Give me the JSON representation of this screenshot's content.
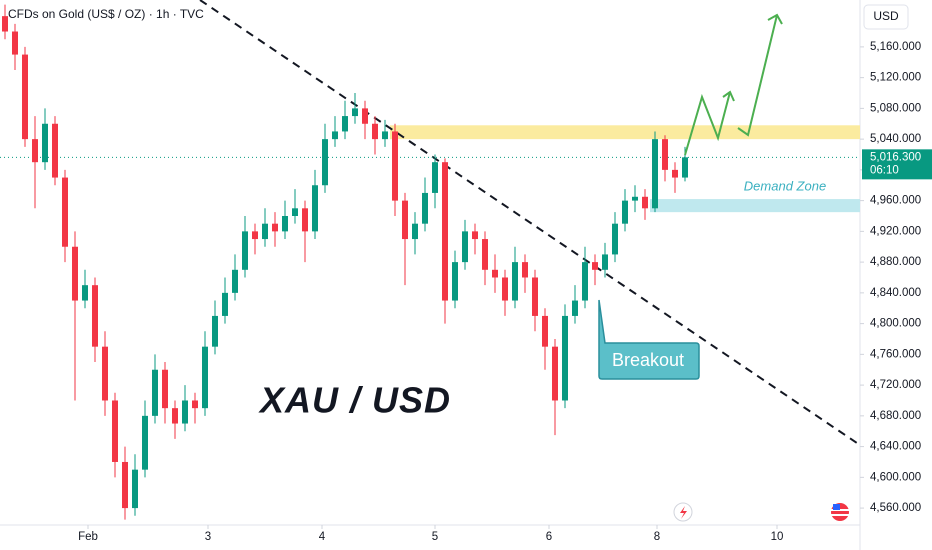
{
  "chart_data": {
    "type": "candlestick",
    "title": "CFDs on Gold (US$ / OZ) · 1h · TVC",
    "currency": "USD",
    "watermark": "XAU / USD",
    "up_color": "#089981",
    "down_color": "#f23645",
    "xlim": [
      -0.5,
      85.5
    ],
    "ylim": [
      4538,
      5221
    ],
    "xticks": [
      {
        "value": 8.3,
        "label": "Feb"
      },
      {
        "value": 20.3,
        "label": "3"
      },
      {
        "value": 31.7,
        "label": "4"
      },
      {
        "value": 43,
        "label": "5"
      },
      {
        "value": 54.4,
        "label": "6"
      },
      {
        "value": 65.2,
        "label": "8"
      },
      {
        "value": 77.2,
        "label": "10"
      }
    ],
    "yticks": [
      {
        "value": 4560,
        "label": "4,560.000"
      },
      {
        "value": 4600,
        "label": "4,600.000"
      },
      {
        "value": 4640,
        "label": "4,640.000"
      },
      {
        "value": 4680,
        "label": "4,680.000"
      },
      {
        "value": 4720,
        "label": "4,720.000"
      },
      {
        "value": 4760,
        "label": "4,760.000"
      },
      {
        "value": 4800,
        "label": "4,800.000"
      },
      {
        "value": 4840,
        "label": "4,840.000"
      },
      {
        "value": 4880,
        "label": "4,880.000"
      },
      {
        "value": 4920,
        "label": "4,920.000"
      },
      {
        "value": 4960,
        "label": "4,960.000"
      },
      {
        "value": 5000,
        "label": "5,000.000"
      },
      {
        "value": 5040,
        "label": "5,040.000"
      },
      {
        "value": 5080,
        "label": "5,080.000"
      },
      {
        "value": 5120,
        "label": "5,120.000"
      },
      {
        "value": 5160,
        "label": "5,160.000"
      }
    ],
    "last_price": {
      "value": 5016.3,
      "label": "5,016.300",
      "countdown": "06:10"
    },
    "zones": [
      {
        "from": 5040,
        "to": 5058,
        "start": 38.5,
        "color": "#fbeb9f"
      },
      {
        "name": "Demand Zone",
        "from": 4945,
        "to": 4962,
        "start": 64.5,
        "color": "#bfe8ee"
      }
    ],
    "trendline": {
      "x": [
        19.5,
        85.5
      ],
      "y": [
        5221,
        4642
      ]
    },
    "annotation": "Breakout",
    "candles": [
      [
        5200,
        5215,
        5170,
        5180
      ],
      [
        5180,
        5190,
        5130,
        5150
      ],
      [
        5150,
        5160,
        5030,
        5040
      ],
      [
        5040,
        5070,
        4950,
        5010
      ],
      [
        5010,
        5080,
        5000,
        5060
      ],
      [
        5060,
        5070,
        4980,
        4990
      ],
      [
        4990,
        5000,
        4880,
        4900
      ],
      [
        4900,
        4920,
        4700,
        4830
      ],
      [
        4830,
        4870,
        4820,
        4850
      ],
      [
        4850,
        4860,
        4750,
        4770
      ],
      [
        4770,
        4790,
        4680,
        4700
      ],
      [
        4700,
        4710,
        4600,
        4620
      ],
      [
        4620,
        4640,
        4545,
        4560
      ],
      [
        4560,
        4630,
        4550,
        4610
      ],
      [
        4610,
        4700,
        4600,
        4680
      ],
      [
        4680,
        4760,
        4670,
        4740
      ],
      [
        4740,
        4750,
        4670,
        4690
      ],
      [
        4690,
        4700,
        4650,
        4670
      ],
      [
        4670,
        4720,
        4660,
        4700
      ],
      [
        4700,
        4710,
        4670,
        4690
      ],
      [
        4690,
        4790,
        4680,
        4770
      ],
      [
        4770,
        4830,
        4760,
        4810
      ],
      [
        4810,
        4860,
        4800,
        4840
      ],
      [
        4840,
        4890,
        4830,
        4870
      ],
      [
        4870,
        4940,
        4860,
        4920
      ],
      [
        4920,
        4930,
        4890,
        4910
      ],
      [
        4910,
        4950,
        4900,
        4930
      ],
      [
        4930,
        4945,
        4900,
        4920
      ],
      [
        4920,
        4960,
        4910,
        4940
      ],
      [
        4940,
        4975,
        4930,
        4950
      ],
      [
        4950,
        4960,
        4880,
        4920
      ],
      [
        4920,
        5000,
        4910,
        4980
      ],
      [
        4980,
        5060,
        4970,
        5040
      ],
      [
        5040,
        5070,
        5030,
        5050
      ],
      [
        5050,
        5090,
        5040,
        5070
      ],
      [
        5070,
        5100,
        5060,
        5080
      ],
      [
        5080,
        5090,
        5040,
        5060
      ],
      [
        5060,
        5070,
        5020,
        5040
      ],
      [
        5040,
        5065,
        5030,
        5050
      ],
      [
        5050,
        5060,
        4940,
        4960
      ],
      [
        4960,
        4970,
        4850,
        4910
      ],
      [
        4910,
        4945,
        4890,
        4930
      ],
      [
        4930,
        4990,
        4920,
        4970
      ],
      [
        4970,
        5020,
        4950,
        5010
      ],
      [
        5010,
        5015,
        4800,
        4830
      ],
      [
        4830,
        4895,
        4820,
        4880
      ],
      [
        4880,
        4935,
        4870,
        4920
      ],
      [
        4920,
        4930,
        4890,
        4910
      ],
      [
        4910,
        4920,
        4850,
        4870
      ],
      [
        4870,
        4890,
        4840,
        4860
      ],
      [
        4860,
        4870,
        4810,
        4830
      ],
      [
        4830,
        4900,
        4820,
        4880
      ],
      [
        4880,
        4890,
        4840,
        4860
      ],
      [
        4860,
        4870,
        4790,
        4810
      ],
      [
        4810,
        4820,
        4740,
        4770
      ],
      [
        4770,
        4780,
        4655,
        4700
      ],
      [
        4700,
        4825,
        4690,
        4810
      ],
      [
        4810,
        4850,
        4800,
        4830
      ],
      [
        4830,
        4900,
        4820,
        4880
      ],
      [
        4880,
        4890,
        4850,
        4870
      ],
      [
        4870,
        4905,
        4860,
        4890
      ],
      [
        4890,
        4945,
        4880,
        4930
      ],
      [
        4930,
        4975,
        4920,
        4960
      ],
      [
        4960,
        4980,
        4945,
        4965
      ],
      [
        4965,
        4975,
        4935,
        4950
      ],
      [
        4950,
        5050,
        4945,
        5040
      ],
      [
        5040,
        5045,
        4985,
        5000
      ],
      [
        5000,
        5010,
        4970,
        4990
      ],
      [
        4990,
        5030,
        4985,
        5016.3
      ]
    ]
  }
}
